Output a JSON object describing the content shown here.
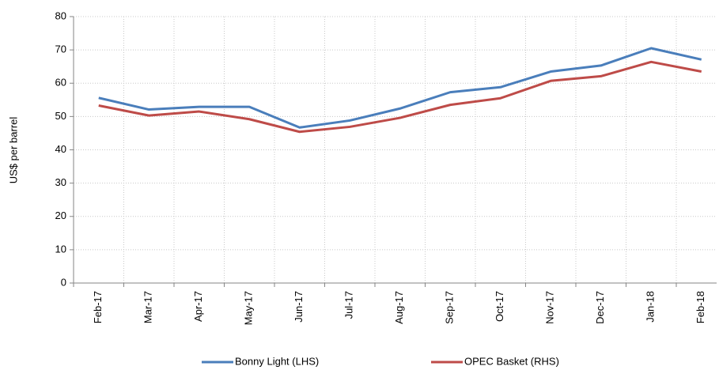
{
  "chart_data": {
    "type": "line",
    "y_label": "US$ per barrel",
    "categories": [
      "Feb-17",
      "Mar-17",
      "Apr-17",
      "May-17",
      "Jun-17",
      "Jul-17",
      "Aug-17",
      "Sep-17",
      "Oct-17",
      "Nov-17",
      "Dec-17",
      "Jan-18",
      "Feb-18"
    ],
    "series": [
      {
        "name": "Bonny Light (LHS)",
        "color": "#4a7ebb",
        "values": [
          55.6,
          52.1,
          52.9,
          52.9,
          46.7,
          48.8,
          52.4,
          57.3,
          58.8,
          63.5,
          65.3,
          70.5,
          67.1
        ]
      },
      {
        "name": "OPEC Basket (RHS)",
        "color": "#be4b48",
        "values": [
          53.3,
          50.3,
          51.5,
          49.2,
          45.4,
          46.9,
          49.6,
          53.5,
          55.5,
          60.7,
          62.1,
          66.4,
          63.5
        ]
      }
    ],
    "ylim": [
      0,
      80
    ],
    "yticks": [
      0,
      10,
      20,
      30,
      40,
      50,
      60,
      70,
      80
    ],
    "grid": true,
    "legend": "bottom"
  }
}
